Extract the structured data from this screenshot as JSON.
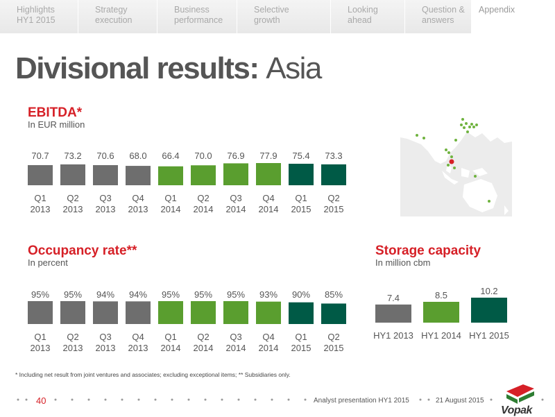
{
  "nav": {
    "tabs": [
      {
        "line1": "Highlights",
        "line2": "HY1 2015"
      },
      {
        "line1": "Strategy",
        "line2": "execution"
      },
      {
        "line1": "Business",
        "line2": "performance"
      },
      {
        "line1": "Selective",
        "line2": "growth"
      },
      {
        "line1": "Looking",
        "line2": "ahead"
      },
      {
        "line1": "Question &",
        "line2": "answers"
      },
      {
        "line1": "Appendix",
        "line2": ""
      }
    ],
    "active_index": 6
  },
  "page_title": {
    "bold": "Divisional results:",
    "light": "Asia"
  },
  "colors": {
    "gray": "#6e6e6e",
    "green": "#5a9e2f",
    "teal": "#005a46",
    "red": "#d62027"
  },
  "chart_data": [
    {
      "type": "bar",
      "title": "EBITDA*",
      "subtitle": "In EUR million",
      "categories": [
        [
          "Q1",
          "2013"
        ],
        [
          "Q2",
          "2013"
        ],
        [
          "Q3",
          "2013"
        ],
        [
          "Q4",
          "2013"
        ],
        [
          "Q1",
          "2014"
        ],
        [
          "Q2",
          "2014"
        ],
        [
          "Q3",
          "2014"
        ],
        [
          "Q4",
          "2014"
        ],
        [
          "Q1",
          "2015"
        ],
        [
          "Q2",
          "2015"
        ]
      ],
      "values": [
        70.7,
        73.2,
        70.6,
        68.0,
        66.4,
        70.0,
        76.9,
        77.9,
        75.4,
        73.3
      ],
      "labels": [
        "70.7",
        "73.2",
        "70.6",
        "68.0",
        "66.4",
        "70.0",
        "76.9",
        "77.9",
        "75.4",
        "73.3"
      ],
      "bar_colors": [
        "gray",
        "gray",
        "gray",
        "gray",
        "green",
        "green",
        "green",
        "green",
        "teal",
        "teal"
      ],
      "ylim": [
        0,
        80
      ]
    },
    {
      "type": "bar",
      "title": "Occupancy rate**",
      "subtitle": "In percent",
      "categories": [
        [
          "Q1",
          "2013"
        ],
        [
          "Q2",
          "2013"
        ],
        [
          "Q3",
          "2013"
        ],
        [
          "Q4",
          "2013"
        ],
        [
          "Q1",
          "2014"
        ],
        [
          "Q2",
          "2014"
        ],
        [
          "Q3",
          "2014"
        ],
        [
          "Q4",
          "2014"
        ],
        [
          "Q1",
          "2015"
        ],
        [
          "Q2",
          "2015"
        ]
      ],
      "values": [
        95,
        95,
        94,
        94,
        95,
        95,
        95,
        93,
        90,
        85
      ],
      "labels": [
        "95%",
        "95%",
        "94%",
        "94%",
        "95%",
        "95%",
        "95%",
        "93%",
        "90%",
        "85%"
      ],
      "bar_colors": [
        "gray",
        "gray",
        "gray",
        "gray",
        "green",
        "green",
        "green",
        "green",
        "teal",
        "teal"
      ],
      "ylim": [
        0,
        100
      ]
    },
    {
      "type": "bar",
      "title": "Storage capacity",
      "subtitle": "In million cbm",
      "categories": [
        [
          "HY1 2013"
        ],
        [
          "HY1 2014"
        ],
        [
          "HY1 2015"
        ]
      ],
      "values": [
        7.4,
        8.5,
        10.2
      ],
      "labels": [
        "7.4",
        "8.5",
        "10.2"
      ],
      "bar_colors": [
        "gray",
        "green",
        "teal"
      ],
      "ylim": [
        0,
        12
      ]
    }
  ],
  "footnote": "* Including net result from joint ventures and associates; excluding exceptional items; ** Subsidiaries only.",
  "footer": {
    "page_number": "40",
    "presentation": "Analyst presentation HY1 2015",
    "date": "21 August 2015",
    "logo_text": "Vopak"
  }
}
